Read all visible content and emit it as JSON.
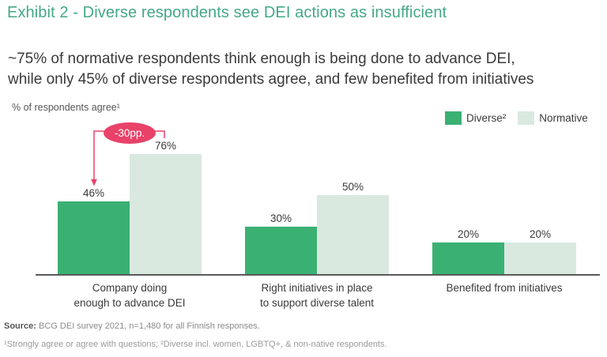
{
  "title": "Exhibit 2 - Diverse respondents see DEI actions as insufficient",
  "subtitle_lines": [
    "~75% of normative respondents think enough is being done to advance DEI,",
    "while only 45% of diverse respondents agree, and few benefited from initiatives"
  ],
  "axis_note": "% of respondents agree¹",
  "legend": [
    {
      "label": "Diverse²",
      "color": "#3bb073"
    },
    {
      "label": "Normative",
      "color": "#d9e9e0"
    }
  ],
  "annotation": {
    "label": "-30pp.",
    "color": "#e84269"
  },
  "chart_data": {
    "type": "bar",
    "unit": "%",
    "title": "% of respondents agree",
    "categories": [
      "Company doing enough to advance DEI",
      "Right initiatives in place to support diverse talent",
      "Benefited from initiatives"
    ],
    "category_display_lines": [
      [
        "Company doing",
        "enough to advance DEI"
      ],
      [
        "Right initiatives in place",
        "to support diverse talent"
      ],
      [
        "Benefited from initiatives"
      ]
    ],
    "series": [
      {
        "name": "Diverse",
        "color": "#3bb073",
        "values": [
          46,
          30,
          20
        ]
      },
      {
        "name": "Normative",
        "color": "#d9e9e0",
        "values": [
          76,
          50,
          20
        ]
      }
    ],
    "ylim": [
      0,
      100
    ],
    "grid": false,
    "legend_position": "top-right",
    "value_labels": true,
    "annotations": [
      {
        "text": "-30pp.",
        "meaning": "difference between Normative 76% and Diverse 46%"
      }
    ]
  },
  "source": {
    "prefix": "Source:",
    "text": " BCG DEI survey 2021, n=1,480 for all Finnish responses."
  },
  "footnote": "¹Strongly agree or agree with questions; ²Diverse incl. women, LGBTQ+, & non-native respondents."
}
